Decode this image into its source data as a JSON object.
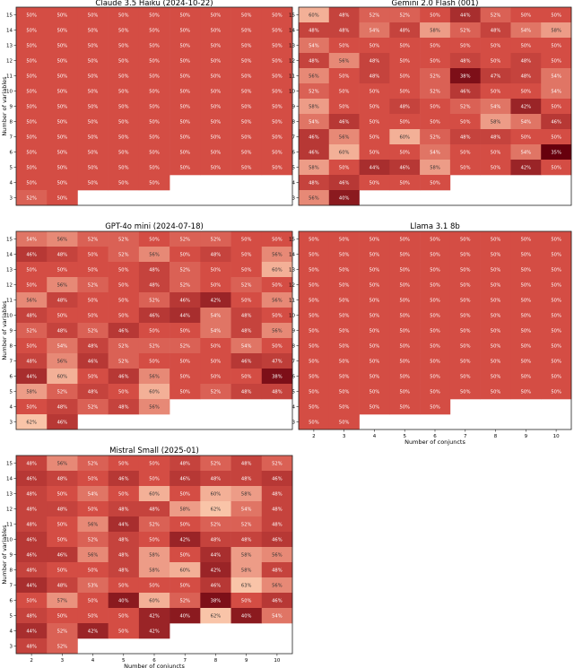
{
  "chart_data": [
    {
      "type": "heatmap",
      "title": "Claude 3.5 Haiku (2024-10-22)",
      "xlabel": "",
      "ylabel": "Number of variables",
      "x": [
        2,
        3,
        4,
        5,
        6,
        7,
        8,
        9,
        10
      ],
      "y": [
        15,
        14,
        13,
        12,
        11,
        10,
        9,
        8,
        7,
        6,
        5,
        4,
        3
      ],
      "values": [
        [
          "50%",
          "50%",
          "50%",
          "50%",
          "50%",
          "50%",
          "50%",
          "50%",
          "50%"
        ],
        [
          "50%",
          "50%",
          "50%",
          "50%",
          "50%",
          "50%",
          "50%",
          "50%",
          "50%"
        ],
        [
          "50%",
          "50%",
          "50%",
          "50%",
          "50%",
          "50%",
          "50%",
          "50%",
          "50%"
        ],
        [
          "50%",
          "50%",
          "50%",
          "50%",
          "50%",
          "50%",
          "50%",
          "50%",
          "50%"
        ],
        [
          "50%",
          "50%",
          "50%",
          "50%",
          "50%",
          "50%",
          "50%",
          "50%",
          "50%"
        ],
        [
          "50%",
          "50%",
          "50%",
          "50%",
          "50%",
          "50%",
          "50%",
          "50%",
          "50%"
        ],
        [
          "50%",
          "50%",
          "50%",
          "50%",
          "50%",
          "50%",
          "50%",
          "50%",
          "50%"
        ],
        [
          "50%",
          "50%",
          "50%",
          "50%",
          "50%",
          "50%",
          "50%",
          "50%",
          "50%"
        ],
        [
          "50%",
          "50%",
          "50%",
          "50%",
          "50%",
          "50%",
          "50%",
          "50%",
          "50%"
        ],
        [
          "50%",
          "50%",
          "50%",
          "50%",
          "50%",
          "50%",
          "50%",
          "50%",
          "50%"
        ],
        [
          "50%",
          "50%",
          "50%",
          "50%",
          "50%",
          "50%",
          "50%",
          "50%",
          "50%"
        ],
        [
          "50%",
          "50%",
          "50%",
          "50%",
          "50%",
          "",
          "",
          "",
          ""
        ],
        [
          "52%",
          "50%",
          "",
          "",
          "",
          "",
          "",
          "",
          ""
        ]
      ]
    },
    {
      "type": "heatmap",
      "title": "Gemini 2.0 Flash (001)",
      "xlabel": "",
      "ylabel": "",
      "x": [
        2,
        3,
        4,
        5,
        6,
        7,
        8,
        9,
        10
      ],
      "y": [
        15,
        14,
        13,
        12,
        11,
        10,
        9,
        8,
        7,
        6,
        5,
        4,
        3
      ],
      "values": [
        [
          "60%",
          "48%",
          "52%",
          "52%",
          "50%",
          "44%",
          "52%",
          "50%",
          "50%"
        ],
        [
          "48%",
          "48%",
          "54%",
          "48%",
          "58%",
          "52%",
          "48%",
          "54%",
          "58%"
        ],
        [
          "54%",
          "50%",
          "50%",
          "50%",
          "50%",
          "50%",
          "50%",
          "50%",
          "50%"
        ],
        [
          "48%",
          "56%",
          "48%",
          "50%",
          "50%",
          "48%",
          "50%",
          "48%",
          "50%"
        ],
        [
          "56%",
          "50%",
          "48%",
          "50%",
          "52%",
          "38%",
          "47%",
          "48%",
          "54%"
        ],
        [
          "52%",
          "50%",
          "50%",
          "50%",
          "52%",
          "46%",
          "50%",
          "50%",
          "54%"
        ],
        [
          "58%",
          "50%",
          "50%",
          "48%",
          "50%",
          "52%",
          "54%",
          "42%",
          "50%"
        ],
        [
          "54%",
          "46%",
          "50%",
          "50%",
          "50%",
          "50%",
          "58%",
          "54%",
          "46%"
        ],
        [
          "46%",
          "56%",
          "50%",
          "60%",
          "52%",
          "48%",
          "48%",
          "50%",
          "50%"
        ],
        [
          "46%",
          "60%",
          "50%",
          "50%",
          "54%",
          "50%",
          "50%",
          "54%",
          "35%"
        ],
        [
          "58%",
          "50%",
          "44%",
          "46%",
          "58%",
          "50%",
          "50%",
          "42%",
          "50%"
        ],
        [
          "48%",
          "46%",
          "50%",
          "50%",
          "50%",
          "",
          "",
          "",
          ""
        ],
        [
          "56%",
          "40%",
          "",
          "",
          "",
          "",
          "",
          "",
          ""
        ]
      ]
    },
    {
      "type": "heatmap",
      "title": "GPT-4o mini (2024-07-18)",
      "xlabel": "",
      "ylabel": "Number of variables",
      "x": [
        2,
        3,
        4,
        5,
        6,
        7,
        8,
        9,
        10
      ],
      "y": [
        15,
        14,
        13,
        12,
        11,
        10,
        9,
        8,
        7,
        6,
        5,
        4,
        3
      ],
      "values": [
        [
          "54%",
          "56%",
          "52%",
          "52%",
          "50%",
          "52%",
          "52%",
          "50%",
          "50%"
        ],
        [
          "46%",
          "48%",
          "50%",
          "52%",
          "56%",
          "50%",
          "48%",
          "50%",
          "56%"
        ],
        [
          "50%",
          "50%",
          "50%",
          "50%",
          "48%",
          "52%",
          "50%",
          "50%",
          "60%"
        ],
        [
          "50%",
          "56%",
          "52%",
          "50%",
          "48%",
          "52%",
          "50%",
          "52%",
          "50%"
        ],
        [
          "56%",
          "48%",
          "50%",
          "50%",
          "52%",
          "46%",
          "42%",
          "50%",
          "56%"
        ],
        [
          "48%",
          "50%",
          "50%",
          "50%",
          "46%",
          "44%",
          "54%",
          "48%",
          "50%"
        ],
        [
          "52%",
          "48%",
          "52%",
          "46%",
          "50%",
          "50%",
          "54%",
          "48%",
          "56%"
        ],
        [
          "50%",
          "54%",
          "48%",
          "52%",
          "52%",
          "52%",
          "50%",
          "54%",
          "50%"
        ],
        [
          "48%",
          "56%",
          "46%",
          "52%",
          "50%",
          "50%",
          "50%",
          "46%",
          "47%"
        ],
        [
          "44%",
          "60%",
          "50%",
          "46%",
          "56%",
          "50%",
          "50%",
          "50%",
          "38%"
        ],
        [
          "58%",
          "52%",
          "48%",
          "50%",
          "60%",
          "50%",
          "52%",
          "48%",
          "48%"
        ],
        [
          "50%",
          "48%",
          "52%",
          "48%",
          "56%",
          "",
          "",
          "",
          ""
        ],
        [
          "62%",
          "46%",
          "",
          "",
          "",
          "",
          "",
          "",
          ""
        ]
      ]
    },
    {
      "type": "heatmap",
      "title": "Llama 3.1 8b",
      "xlabel": "Number of conjuncts",
      "ylabel": "",
      "x": [
        2,
        3,
        4,
        5,
        6,
        7,
        8,
        9,
        10
      ],
      "y": [
        15,
        14,
        13,
        12,
        11,
        10,
        9,
        8,
        7,
        6,
        5,
        4,
        3
      ],
      "values": [
        [
          "50%",
          "50%",
          "50%",
          "50%",
          "50%",
          "50%",
          "50%",
          "50%",
          "50%"
        ],
        [
          "50%",
          "50%",
          "50%",
          "50%",
          "50%",
          "50%",
          "50%",
          "50%",
          "50%"
        ],
        [
          "50%",
          "50%",
          "50%",
          "50%",
          "50%",
          "50%",
          "50%",
          "50%",
          "50%"
        ],
        [
          "50%",
          "50%",
          "50%",
          "50%",
          "50%",
          "50%",
          "50%",
          "50%",
          "50%"
        ],
        [
          "50%",
          "50%",
          "50%",
          "50%",
          "50%",
          "50%",
          "50%",
          "50%",
          "50%"
        ],
        [
          "50%",
          "50%",
          "50%",
          "50%",
          "50%",
          "50%",
          "50%",
          "50%",
          "50%"
        ],
        [
          "50%",
          "50%",
          "50%",
          "50%",
          "50%",
          "50%",
          "50%",
          "50%",
          "50%"
        ],
        [
          "50%",
          "50%",
          "50%",
          "50%",
          "50%",
          "50%",
          "50%",
          "50%",
          "50%"
        ],
        [
          "50%",
          "50%",
          "50%",
          "50%",
          "50%",
          "50%",
          "50%",
          "50%",
          "50%"
        ],
        [
          "50%",
          "50%",
          "50%",
          "50%",
          "50%",
          "50%",
          "50%",
          "50%",
          "50%"
        ],
        [
          "50%",
          "50%",
          "50%",
          "50%",
          "50%",
          "50%",
          "50%",
          "50%",
          "50%"
        ],
        [
          "50%",
          "50%",
          "50%",
          "50%",
          "50%",
          "",
          "",
          "",
          ""
        ],
        [
          "50%",
          "50%",
          "",
          "",
          "",
          "",
          "",
          "",
          ""
        ]
      ]
    },
    {
      "type": "heatmap",
      "title": "Mistral Small (2025-01)",
      "xlabel": "Number of conjuncts",
      "ylabel": "Number of variables",
      "x": [
        2,
        3,
        4,
        5,
        6,
        7,
        8,
        9,
        10
      ],
      "y": [
        15,
        14,
        13,
        12,
        11,
        10,
        9,
        8,
        7,
        6,
        5,
        4,
        3
      ],
      "values": [
        [
          "48%",
          "56%",
          "52%",
          "50%",
          "50%",
          "48%",
          "52%",
          "48%",
          "52%"
        ],
        [
          "46%",
          "48%",
          "50%",
          "46%",
          "50%",
          "46%",
          "48%",
          "48%",
          "46%"
        ],
        [
          "48%",
          "50%",
          "54%",
          "50%",
          "60%",
          "50%",
          "60%",
          "58%",
          "48%"
        ],
        [
          "48%",
          "48%",
          "50%",
          "48%",
          "48%",
          "58%",
          "62%",
          "54%",
          "48%"
        ],
        [
          "48%",
          "50%",
          "56%",
          "44%",
          "52%",
          "50%",
          "52%",
          "52%",
          "48%"
        ],
        [
          "46%",
          "50%",
          "52%",
          "48%",
          "50%",
          "42%",
          "48%",
          "48%",
          "46%"
        ],
        [
          "46%",
          "46%",
          "56%",
          "48%",
          "58%",
          "50%",
          "44%",
          "58%",
          "56%"
        ],
        [
          "48%",
          "50%",
          "50%",
          "48%",
          "58%",
          "60%",
          "42%",
          "58%",
          "48%"
        ],
        [
          "44%",
          "48%",
          "53%",
          "50%",
          "50%",
          "50%",
          "46%",
          "63%",
          "56%"
        ],
        [
          "50%",
          "57%",
          "50%",
          "40%",
          "60%",
          "52%",
          "38%",
          "50%",
          "46%"
        ],
        [
          "48%",
          "50%",
          "50%",
          "50%",
          "42%",
          "40%",
          "62%",
          "40%",
          "54%"
        ],
        [
          "44%",
          "52%",
          "42%",
          "50%",
          "42%",
          "",
          "",
          "",
          ""
        ],
        [
          "48%",
          "52%",
          "",
          "",
          "",
          "",
          "",
          "",
          ""
        ]
      ]
    }
  ]
}
